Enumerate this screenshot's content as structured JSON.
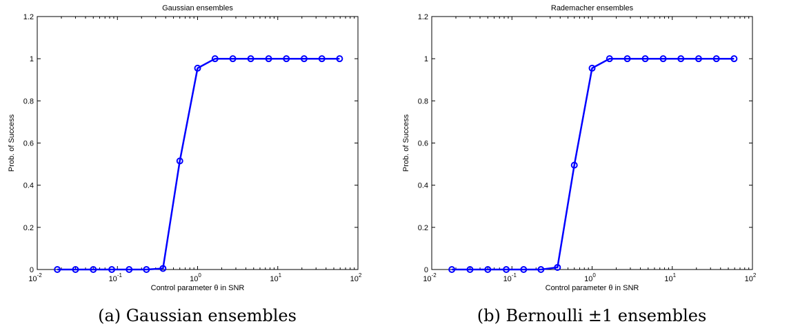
{
  "chart_data": [
    {
      "type": "line",
      "title": "Gaussian ensembles",
      "xlabel": "Control parameter θ in SNR",
      "ylabel": "Prob. of Success",
      "xscale": "log",
      "xlim": [
        0.01,
        100
      ],
      "ylim": [
        0,
        1.2
      ],
      "x_ticks": [
        0.01,
        0.1,
        1,
        10,
        100
      ],
      "x_tick_base": "10",
      "x_tick_exponents": [
        "-2",
        "-1",
        "0",
        "1",
        "2"
      ],
      "y_ticks": [
        "0",
        "0.2",
        "0.4",
        "0.6",
        "0.8",
        "1",
        "1.2"
      ],
      "grid": false,
      "color": "#0000ff",
      "marker": "circle",
      "x": [
        0.0178,
        0.03,
        0.05,
        0.085,
        0.14,
        0.23,
        0.37,
        0.6,
        1.0,
        1.65,
        2.75,
        4.6,
        7.7,
        12.8,
        21.3,
        35.5,
        59.0
      ],
      "y": [
        0,
        0,
        0,
        0,
        0,
        0,
        0.005,
        0.515,
        0.955,
        1,
        1,
        1,
        1,
        1,
        1,
        1,
        1
      ],
      "caption": "(a) Gaussian ensembles"
    },
    {
      "type": "line",
      "title": "Rademacher ensembles",
      "xlabel": "Control parameter θ in SNR",
      "ylabel": "Prob. of Success",
      "xscale": "log",
      "xlim": [
        0.01,
        100
      ],
      "ylim": [
        0,
        1.2
      ],
      "x_ticks": [
        0.01,
        0.1,
        1,
        10,
        100
      ],
      "x_tick_base": "10",
      "x_tick_exponents": [
        "-2",
        "-1",
        "0",
        "1",
        "2"
      ],
      "y_ticks": [
        "0",
        "0.2",
        "0.4",
        "0.6",
        "0.8",
        "1",
        "1.2"
      ],
      "grid": false,
      "color": "#0000ff",
      "marker": "circle",
      "x": [
        0.0178,
        0.03,
        0.05,
        0.085,
        0.14,
        0.23,
        0.37,
        0.6,
        1.0,
        1.65,
        2.75,
        4.6,
        7.7,
        12.8,
        21.3,
        35.5,
        59.0
      ],
      "y": [
        0,
        0,
        0,
        0,
        0,
        0,
        0.01,
        0.495,
        0.955,
        1,
        1,
        1,
        1,
        1,
        1,
        1,
        1
      ],
      "caption": "(b) Bernoulli ±1 ensembles"
    }
  ]
}
